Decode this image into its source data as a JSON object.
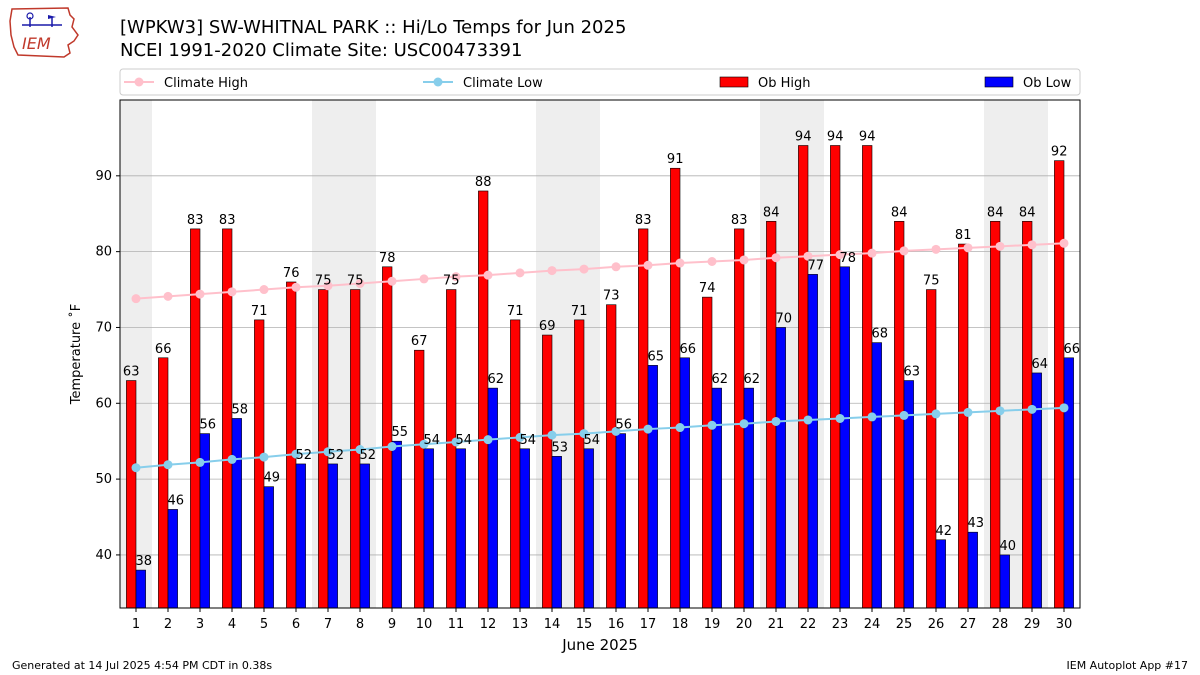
{
  "title_line1": "[WPKW3] SW-WHITNAL PARK :: Hi/Lo Temps for Jun 2025",
  "title_line2": "NCEI 1991-2020 Climate Site: USC00473391",
  "logo_text": "IEM",
  "footer_left": "Generated at 14 Jul 2025 4:54 PM CDT in 0.38s",
  "footer_right": "IEM Autoplot App #17",
  "colors": {
    "ob_high": "#ff0000",
    "ob_low": "#0000ff",
    "climate_high": "#ffc0cb",
    "climate_low": "#87ceeb",
    "weekend_shade": "#eeeeee",
    "grid": "#b0b0b0"
  },
  "chart_data": {
    "type": "bar",
    "xlabel": "June 2025",
    "ylabel": "Temperature ˚F",
    "ylim": [
      33,
      100
    ],
    "yticks": [
      40,
      50,
      60,
      70,
      80,
      90
    ],
    "grid": "horizontal",
    "legend_position": "top",
    "categories": [
      "1",
      "2",
      "3",
      "4",
      "5",
      "6",
      "7",
      "8",
      "9",
      "10",
      "11",
      "12",
      "13",
      "14",
      "15",
      "16",
      "17",
      "18",
      "19",
      "20",
      "21",
      "22",
      "23",
      "24",
      "25",
      "26",
      "27",
      "28",
      "29",
      "30"
    ],
    "shaded_days": [
      1,
      7,
      8,
      14,
      15,
      21,
      22,
      28,
      29
    ],
    "series": [
      {
        "name": "Climate High",
        "kind": "line",
        "values": [
          73.8,
          74.1,
          74.4,
          74.7,
          75.0,
          75.3,
          75.5,
          75.8,
          76.1,
          76.4,
          76.7,
          76.9,
          77.2,
          77.5,
          77.7,
          78.0,
          78.2,
          78.5,
          78.7,
          78.9,
          79.2,
          79.4,
          79.6,
          79.8,
          80.1,
          80.3,
          80.5,
          80.7,
          80.9,
          81.1
        ]
      },
      {
        "name": "Climate Low",
        "kind": "line",
        "values": [
          51.5,
          51.9,
          52.2,
          52.6,
          52.9,
          53.3,
          53.6,
          53.9,
          54.3,
          54.6,
          54.9,
          55.2,
          55.5,
          55.8,
          56.0,
          56.3,
          56.6,
          56.8,
          57.1,
          57.3,
          57.6,
          57.8,
          58.0,
          58.2,
          58.4,
          58.6,
          58.8,
          59.0,
          59.2,
          59.4
        ]
      },
      {
        "name": "Ob High",
        "kind": "bar",
        "values": [
          63,
          66,
          83,
          83,
          71,
          76,
          75,
          75,
          78,
          67,
          75,
          88,
          71,
          69,
          71,
          73,
          83,
          91,
          74,
          83,
          84,
          94,
          94,
          94,
          84,
          75,
          81,
          84,
          84,
          92
        ]
      },
      {
        "name": "Ob Low",
        "kind": "bar",
        "values": [
          38,
          46,
          56,
          58,
          49,
          52,
          52,
          52,
          55,
          54,
          54,
          62,
          54,
          53,
          54,
          56,
          65,
          66,
          62,
          62,
          70,
          77,
          78,
          68,
          63,
          42,
          43,
          40,
          64,
          66
        ]
      }
    ]
  }
}
